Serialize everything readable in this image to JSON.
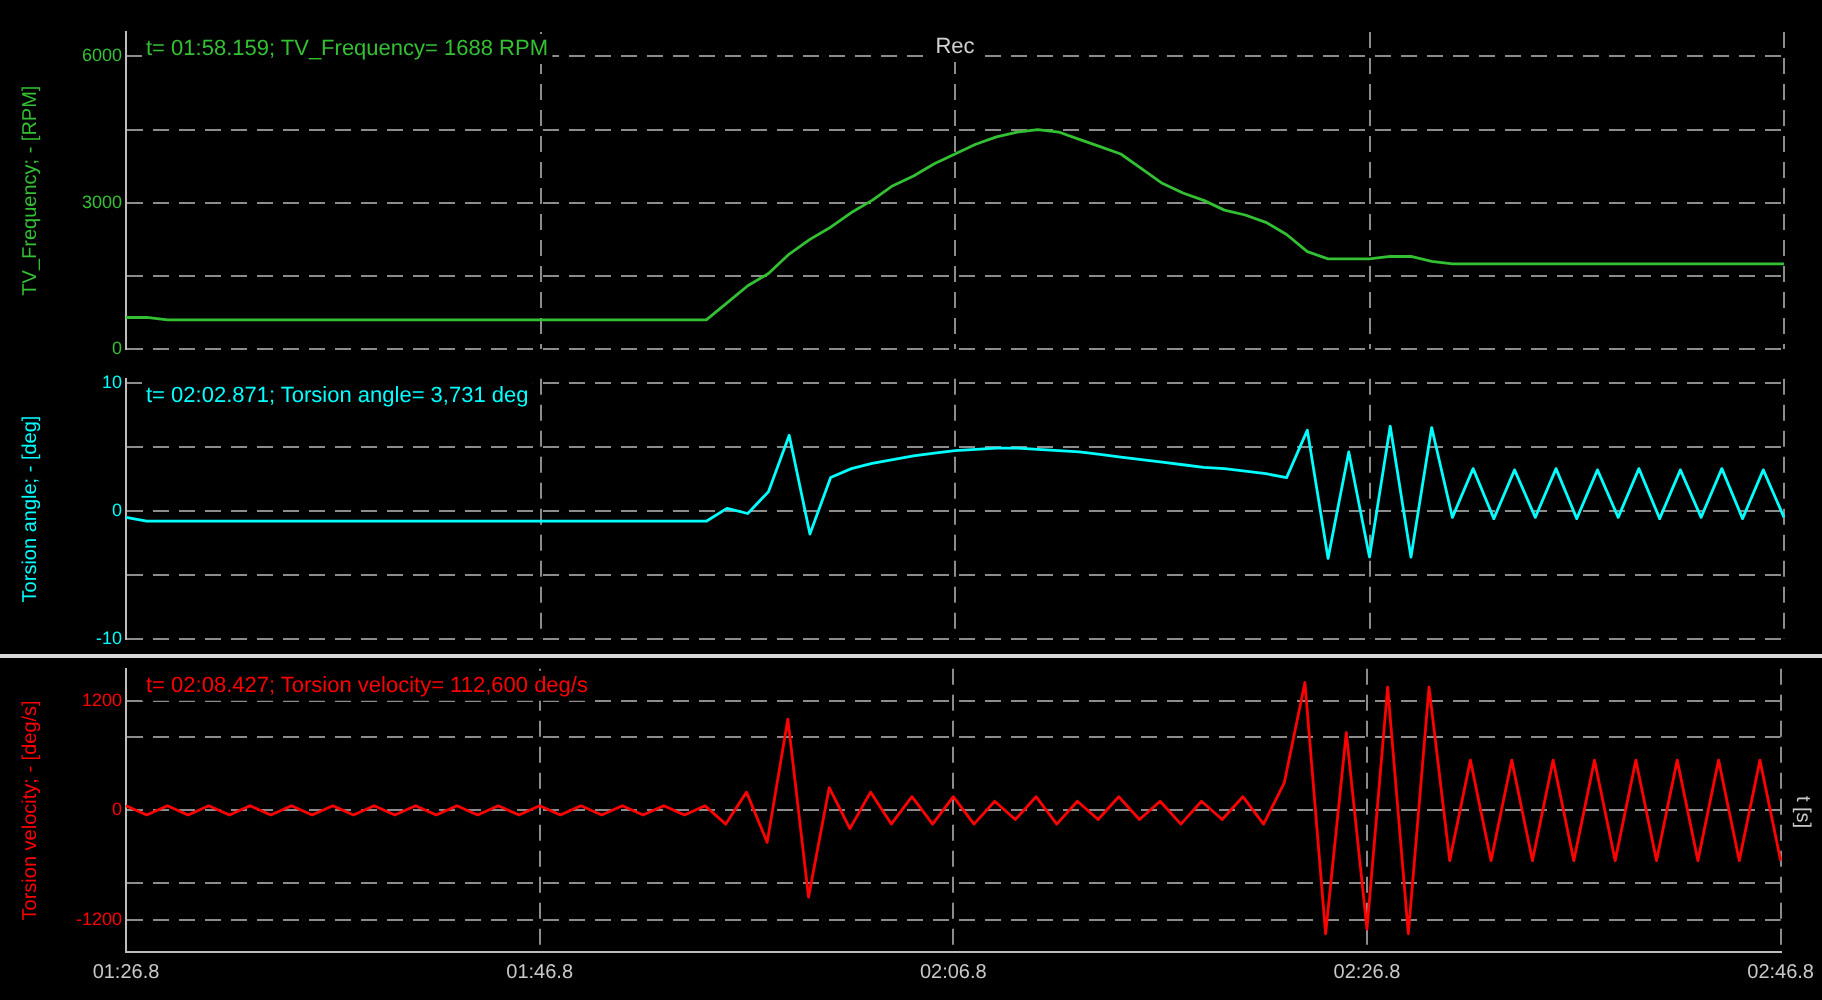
{
  "chart_data": [
    {
      "type": "line",
      "ylabel": "TV_Frequency; - [RPM]",
      "annotations": [
        "t= 01:58.159; TV_Frequency= 1688 RPM",
        "Rec"
      ],
      "categories": [
        null,
        null,
        null,
        null,
        null,
        null,
        null,
        null,
        null,
        null,
        null,
        null,
        null,
        null,
        null,
        null,
        null,
        null,
        null,
        null,
        null,
        null,
        null,
        null,
        null,
        null,
        null,
        null,
        null,
        null,
        null,
        null,
        null,
        null,
        null,
        null,
        null,
        null,
        null,
        null,
        null,
        null,
        null,
        null,
        null,
        null,
        null,
        null,
        null,
        null,
        null,
        null,
        null,
        null,
        null,
        null,
        null,
        null,
        null,
        null,
        null,
        null,
        null,
        null,
        null,
        null,
        null,
        null,
        null,
        null,
        null,
        null,
        null,
        null,
        null,
        null,
        null,
        null,
        null,
        null,
        null
      ],
      "series": [
        {
          "color": "#33c033",
          "values": [
            650,
            650,
            600,
            600,
            600,
            600,
            600,
            600,
            600,
            600,
            600,
            600,
            600,
            600,
            600,
            600,
            600,
            600,
            600,
            600,
            600,
            600,
            600,
            600,
            600,
            600,
            600,
            600,
            600,
            950,
            1300,
            1550,
            1950,
            2250,
            2500,
            2800,
            3050,
            3350,
            3550,
            3800,
            4000,
            4200,
            4350,
            4450,
            4500,
            4450,
            4300,
            4150,
            4000,
            3700,
            3400,
            3200,
            3050,
            2850,
            2750,
            2600,
            2350,
            2000,
            1850,
            1850,
            1850,
            1900,
            1900,
            1800,
            1750,
            1750,
            1750,
            1750,
            1750,
            1750,
            1750,
            1750,
            1750,
            1750,
            1750,
            1750,
            1750,
            1750,
            1750,
            1750,
            1750
          ]
        }
      ],
      "ylim": [
        0,
        6500
      ],
      "yticks": [
        0,
        {
          "value": 1500,
          "label": null
        },
        3000,
        {
          "value": 4500,
          "label": null
        },
        6000
      ],
      "grid": true,
      "tick_labels": "y",
      "marker": "none"
    },
    {
      "type": "line",
      "ylabel": "Torsion angle; - [deg]",
      "annotations": [
        "t= 02:02.871; Torsion angle= 3,731 deg"
      ],
      "categories": [
        null,
        null,
        null,
        null,
        null,
        null,
        null,
        null,
        null,
        null,
        null,
        null,
        null,
        null,
        null,
        null,
        null,
        null,
        null,
        null,
        null,
        null,
        null,
        null,
        null,
        null,
        null,
        null,
        null,
        null,
        null,
        null,
        null,
        null,
        null,
        null,
        null,
        null,
        null,
        null,
        null,
        null,
        null,
        null,
        null,
        null,
        null,
        null,
        null,
        null,
        null,
        null,
        null,
        null,
        null,
        null,
        null,
        null,
        null,
        null,
        null,
        null,
        null,
        null,
        null,
        null,
        null,
        null,
        null,
        null,
        null,
        null,
        null,
        null,
        null,
        null,
        null,
        null,
        null,
        null,
        null
      ],
      "series": [
        {
          "color": "#00ffff",
          "values": [
            -0.5,
            -0.8,
            -0.8,
            -0.8,
            -0.8,
            -0.8,
            -0.8,
            -0.8,
            -0.8,
            -0.8,
            -0.8,
            -0.8,
            -0.8,
            -0.8,
            -0.8,
            -0.8,
            -0.8,
            -0.8,
            -0.8,
            -0.8,
            -0.8,
            -0.8,
            -0.8,
            -0.8,
            -0.8,
            -0.8,
            -0.8,
            -0.8,
            -0.8,
            0.2,
            -0.2,
            1.5,
            5.9,
            -1.8,
            2.6,
            3.3,
            3.7,
            4.0,
            4.3,
            4.5,
            4.7,
            4.8,
            4.9,
            4.9,
            4.8,
            4.7,
            4.6,
            4.4,
            4.2,
            4.0,
            3.8,
            3.6,
            3.4,
            3.3,
            3.1,
            2.9,
            2.6,
            6.3,
            -3.7,
            4.6,
            -3.6,
            6.6,
            -3.6,
            6.5,
            -0.5,
            3.3,
            -0.6,
            3.2,
            -0.5,
            3.3,
            -0.6,
            3.2,
            -0.5,
            3.3,
            -0.6,
            3.2,
            -0.5,
            3.3,
            -0.6,
            3.2,
            -0.5
          ]
        }
      ],
      "ylim": [
        -10,
        10.3
      ],
      "yticks": [
        -10,
        {
          "value": -5,
          "label": null
        },
        0,
        {
          "value": 5,
          "label": null
        },
        10
      ],
      "grid": true,
      "tick_labels": "y",
      "marker": "none"
    },
    {
      "type": "line",
      "ylabel": "Torsion velocity; - [deg/s]",
      "annotations": [
        "t= 02:08.427; Torsion velocity= 112,600 deg/s",
        "t [s]"
      ],
      "categories": [
        "01:26.8",
        null,
        null,
        null,
        null,
        null,
        null,
        null,
        null,
        null,
        null,
        null,
        null,
        null,
        null,
        null,
        null,
        null,
        null,
        null,
        "01:46.8",
        null,
        null,
        null,
        null,
        null,
        null,
        null,
        null,
        null,
        null,
        null,
        null,
        null,
        null,
        null,
        null,
        null,
        null,
        null,
        "02:06.8",
        null,
        null,
        null,
        null,
        null,
        null,
        null,
        null,
        null,
        null,
        null,
        null,
        null,
        null,
        null,
        null,
        null,
        null,
        null,
        "02:26.8",
        null,
        null,
        null,
        null,
        null,
        null,
        null,
        null,
        null,
        null,
        null,
        null,
        null,
        null,
        null,
        null,
        null,
        null,
        null,
        "02:46.8"
      ],
      "series": [
        {
          "color": "#ff0000",
          "values": [
            50,
            -50,
            50,
            -50,
            50,
            -50,
            50,
            -50,
            50,
            -50,
            50,
            -50,
            50,
            -50,
            50,
            -50,
            50,
            -50,
            50,
            -50,
            50,
            -50,
            50,
            -50,
            50,
            -50,
            50,
            -50,
            50,
            -150,
            200,
            -350,
            1000,
            -950,
            250,
            -200,
            200,
            -150,
            150,
            -150,
            150,
            -150,
            100,
            -100,
            150,
            -150,
            100,
            -100,
            150,
            -100,
            100,
            -150,
            100,
            -100,
            150,
            -150,
            300,
            1400,
            -1350,
            850,
            -1300,
            1350,
            -1350,
            1350,
            -550,
            550,
            -550,
            550,
            -550,
            550,
            -550,
            550,
            -550,
            550,
            -550,
            550,
            -550,
            550,
            -550,
            550,
            -550
          ]
        }
      ],
      "ylim": [
        -1550,
        1550
      ],
      "yticks": [
        -1200,
        {
          "value": -800,
          "label": null
        },
        0,
        {
          "value": 800,
          "label": null
        },
        1200
      ],
      "grid": true,
      "marker": "none"
    }
  ]
}
